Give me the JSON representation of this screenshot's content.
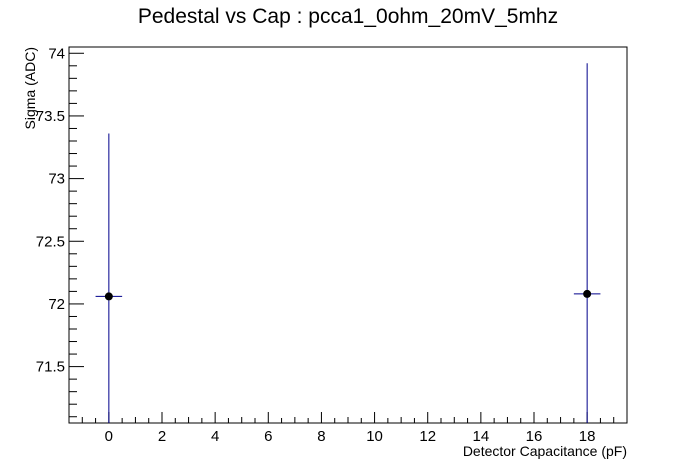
{
  "chart_data": {
    "type": "scatter",
    "title": "Pedestal vs Cap : pcca1_0ohm_20mV_5mhz",
    "xlabel": "Detector Capacitance (pF)",
    "ylabel": "Sigma (ADC)",
    "xlim": [
      -1.5,
      19.5
    ],
    "ylim": [
      71.05,
      74.05
    ],
    "x_ticks": [
      0,
      2,
      4,
      6,
      8,
      10,
      12,
      14,
      16,
      18
    ],
    "x_tick_labels": [
      "0",
      "2",
      "4",
      "6",
      "8",
      "10",
      "12",
      "14",
      "16",
      "18"
    ],
    "y_ticks": [
      71.5,
      72,
      72.5,
      73,
      73.5,
      74
    ],
    "y_tick_labels": [
      "71.5",
      "72",
      "72.5",
      "73",
      "73.5",
      "74"
    ],
    "grid": false,
    "points": [
      {
        "x": 0,
        "y": 72.06,
        "x_err": 0.5,
        "y_err": 1.3
      },
      {
        "x": 18,
        "y": 72.08,
        "x_err": 0.5,
        "y_err": 1.84
      }
    ],
    "colors": {
      "marker": "#000000",
      "error_bar": "#00008b",
      "axis": "#000000"
    }
  }
}
